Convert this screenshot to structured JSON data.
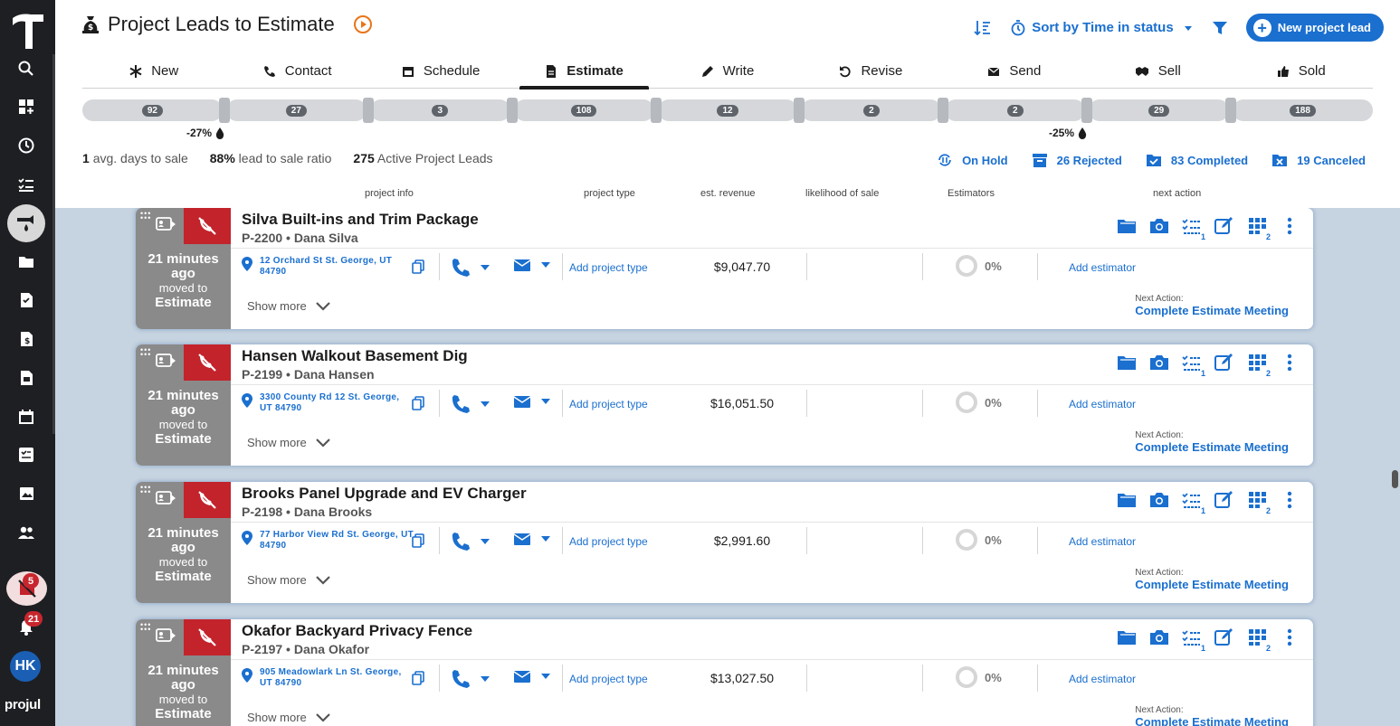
{
  "app": {
    "brand": "projul",
    "user_initials": "HK",
    "alerts_badge": "5",
    "notifications_badge": "21"
  },
  "header": {
    "title": "Project Leads to Estimate",
    "sort_label": "Sort by Time in status",
    "new_button_label": "New project lead"
  },
  "stages": [
    {
      "label": "New",
      "icon": "asterisk-icon",
      "count": "92"
    },
    {
      "label": "Contact",
      "icon": "phone-icon",
      "count": "27"
    },
    {
      "label": "Schedule",
      "icon": "calendar-icon",
      "count": "3"
    },
    {
      "label": "Estimate",
      "icon": "document-icon",
      "count": "108",
      "active": true
    },
    {
      "label": "Write",
      "icon": "pencil-icon",
      "count": "12"
    },
    {
      "label": "Revise",
      "icon": "undo-icon",
      "count": "2"
    },
    {
      "label": "Send",
      "icon": "envelope-icon",
      "count": "2"
    },
    {
      "label": "Sell",
      "icon": "handshake-icon",
      "count": "29"
    },
    {
      "label": "Sold",
      "icon": "thumbs-up-icon",
      "count": "188"
    }
  ],
  "drops": {
    "first": "-27%",
    "second": "-25%"
  },
  "stats": {
    "avg_days_value": "1",
    "avg_days_label": "avg. days to sale",
    "ratio_value": "88%",
    "ratio_label": "lead to sale ratio",
    "active_value": "275",
    "active_label": "Active Project Leads"
  },
  "status_filters": {
    "on_hold": "On Hold",
    "rejected": "26 Rejected",
    "completed": "83 Completed",
    "canceled": "19 Canceled"
  },
  "columns": {
    "project_info": "project info",
    "project_type": "project type",
    "est_revenue": "est. revenue",
    "likelihood": "likelihood of sale",
    "estimators": "Estimators",
    "next_action": "next action"
  },
  "card_labels": {
    "moved_to": "moved to",
    "stage": "Estimate",
    "add_project_type": "Add project type",
    "add_estimator": "Add estimator",
    "show_more": "Show more",
    "next_action_label": "Next Action:",
    "tasks_badge": "1",
    "grid_badge": "2"
  },
  "leads": [
    {
      "name": "Silva Built-ins and Trim Package",
      "id": "P-2200",
      "client": "Dana Silva",
      "time": "21 minutes ago",
      "address": "12 Orchard St St. George, UT 84790",
      "revenue": "$9,047.70",
      "likelihood": "0%",
      "next_action": "Complete Estimate Meeting"
    },
    {
      "name": "Hansen Walkout Basement Dig",
      "id": "P-2199",
      "client": "Dana Hansen",
      "time": "21 minutes ago",
      "address": "3300 County Rd 12 St. George, UT 84790",
      "revenue": "$16,051.50",
      "likelihood": "0%",
      "next_action": "Complete Estimate Meeting"
    },
    {
      "name": "Brooks Panel Upgrade and EV Charger",
      "id": "P-2198",
      "client": "Dana Brooks",
      "time": "21 minutes ago",
      "address": "77 Harbor View Rd St. George, UT 84790",
      "revenue": "$2,991.60",
      "likelihood": "0%",
      "next_action": "Complete Estimate Meeting"
    },
    {
      "name": "Okafor Backyard Privacy Fence",
      "id": "P-2197",
      "client": "Dana Okafor",
      "time": "21 minutes ago",
      "address": "905 Meadowlark Ln St. George, UT 84790",
      "revenue": "$13,027.50",
      "likelihood": "0%",
      "next_action": "Complete Estimate Meeting"
    }
  ],
  "colors": {
    "accent": "#1a6fcf",
    "rail": "#1e1f22",
    "danger": "#c3232b",
    "list_bg": "#c6d3e0"
  }
}
